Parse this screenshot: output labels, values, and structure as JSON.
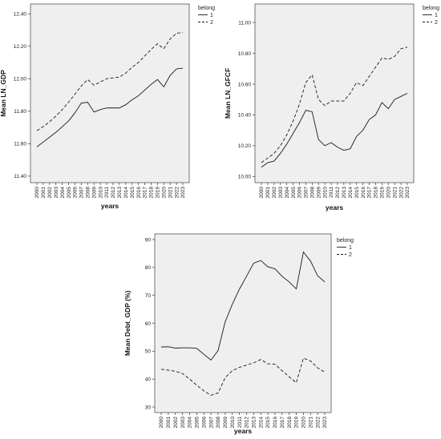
{
  "chart_data": [
    {
      "type": "line",
      "x": [
        "2000",
        "2001",
        "2002",
        "2003",
        "2004",
        "2005",
        "2006",
        "2007",
        "2008",
        "2009",
        "2010",
        "2011",
        "2012",
        "2013",
        "2014",
        "2015",
        "2016",
        "2017",
        "2018",
        "2019",
        "2020",
        "2021",
        "2022",
        "2023"
      ],
      "xlabel": "years",
      "ylabel": "Mean LN_GDP",
      "ylim": [
        11.36,
        12.46
      ],
      "yticks": [
        "11.40",
        "11.60",
        "11.80",
        "12.00",
        "12.20",
        "12.40"
      ],
      "legend_title": "belong",
      "legend_position": "top-right",
      "series": [
        {
          "name": "1",
          "dash": "solid",
          "values": [
            11.58,
            11.61,
            11.64,
            11.67,
            11.705,
            11.74,
            11.79,
            11.85,
            11.855,
            11.795,
            11.81,
            11.82,
            11.82,
            11.82,
            11.84,
            11.87,
            11.895,
            11.93,
            11.965,
            11.995,
            11.95,
            12.02,
            12.06,
            12.065
          ]
        },
        {
          "name": "2",
          "dash": "dashed",
          "values": [
            11.68,
            11.705,
            11.735,
            11.77,
            11.81,
            11.855,
            11.905,
            11.955,
            11.995,
            11.96,
            11.98,
            12.0,
            12.005,
            12.01,
            12.035,
            12.07,
            12.1,
            12.14,
            12.18,
            12.215,
            12.185,
            12.245,
            12.28,
            12.285
          ]
        }
      ]
    },
    {
      "type": "line",
      "x": [
        "2000",
        "2001",
        "2002",
        "2003",
        "2004",
        "2005",
        "2006",
        "2007",
        "2008",
        "2009",
        "2010",
        "2011",
        "2012",
        "2013",
        "2014",
        "2015",
        "2016",
        "2017",
        "2018",
        "2019",
        "2020",
        "2021",
        "2022",
        "2023"
      ],
      "xlabel": "years",
      "ylabel": "Mean LN_GFCF",
      "ylim": [
        9.96,
        11.12
      ],
      "yticks": [
        "10.00",
        "10.20",
        "10.40",
        "10.60",
        "10.80",
        "11.00"
      ],
      "legend_title": "belong",
      "legend_position": "top-right",
      "series": [
        {
          "name": "1",
          "dash": "solid",
          "values": [
            10.06,
            10.09,
            10.1,
            10.15,
            10.21,
            10.28,
            10.35,
            10.43,
            10.42,
            10.24,
            10.2,
            10.22,
            10.19,
            10.17,
            10.18,
            10.26,
            10.3,
            10.37,
            10.4,
            10.48,
            10.44,
            10.5,
            10.52,
            10.54
          ]
        },
        {
          "name": "2",
          "dash": "dashed",
          "values": [
            10.09,
            10.12,
            10.15,
            10.2,
            10.27,
            10.36,
            10.47,
            10.61,
            10.66,
            10.5,
            10.46,
            10.49,
            10.49,
            10.49,
            10.54,
            10.61,
            10.59,
            10.65,
            10.71,
            10.77,
            10.76,
            10.78,
            10.83,
            10.84
          ]
        }
      ]
    },
    {
      "type": "line",
      "x": [
        "2000",
        "2001",
        "2002",
        "2003",
        "2004",
        "2005",
        "2006",
        "2007",
        "2008",
        "2009",
        "2010",
        "2011",
        "2012",
        "2013",
        "2014",
        "2015",
        "2016",
        "2017",
        "2018",
        "2019",
        "2020",
        "2021",
        "2022",
        "2023"
      ],
      "xlabel": "years",
      "ylabel": "Mean Debt_GDP (%)",
      "ylim": [
        28,
        92
      ],
      "yticks": [
        "30",
        "40",
        "50",
        "60",
        "70",
        "80",
        "90"
      ],
      "legend_title": "belong",
      "legend_position": "top-right",
      "series": [
        {
          "name": "1",
          "dash": "solid",
          "values": [
            51.5,
            51.6,
            51.1,
            51.2,
            51.2,
            51.0,
            48.9,
            46.8,
            50.2,
            60.5,
            66.8,
            72.2,
            76.8,
            81.5,
            82.5,
            80.2,
            79.5,
            76.8,
            74.8,
            72.3,
            85.5,
            82.3,
            77.0,
            74.8
          ]
        },
        {
          "name": "2",
          "dash": "dashed",
          "values": [
            43.5,
            43.2,
            42.8,
            42.0,
            40.0,
            37.8,
            35.8,
            34.2,
            35.0,
            40.5,
            43.0,
            44.2,
            45.0,
            45.8,
            47.0,
            45.5,
            45.3,
            43.0,
            40.8,
            38.7,
            47.5,
            46.5,
            44.0,
            42.5
          ]
        }
      ]
    }
  ]
}
